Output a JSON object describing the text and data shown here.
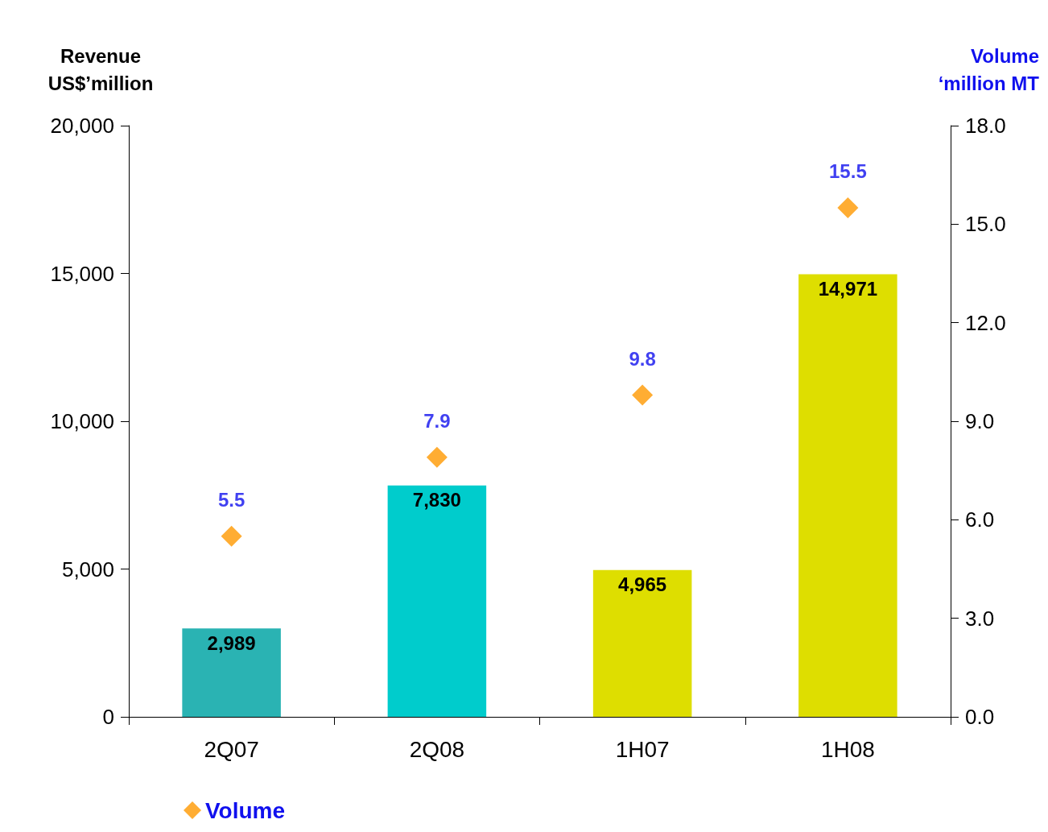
{
  "chart_data": {
    "type": "bar",
    "ylabel": "Revenue\nUS$’million",
    "y2label": "Volume\n‘million MT",
    "categories": [
      "2Q07",
      "2Q08",
      "1H07",
      "1H08"
    ],
    "series": [
      {
        "colors": [
          "#2ab3b3",
          "#00cccc",
          "#dede00",
          "#dede00"
        ],
        "values": [
          2989,
          7830,
          4965,
          14971
        ],
        "value_labels": [
          "2,989",
          "7,830",
          "4,965",
          "14,971"
        ]
      },
      {
        "type": "scatter",
        "name": "Volume",
        "axis": "y2",
        "color": "#ff9900",
        "marker": "diamond",
        "values": [
          5.5,
          7.9,
          9.8,
          15.5
        ],
        "value_labels": [
          "5.5",
          "7.9",
          "9.8",
          "15.5"
        ]
      }
    ],
    "ylim": [
      0,
      20000
    ],
    "yticks": [
      0,
      {
        "value": 5000,
        "label": "5,000"
      },
      {
        "value": 10000,
        "label": "10,000"
      },
      {
        "value": 15000,
        "label": "15,000"
      },
      {
        "value": 20000,
        "label": "20,000"
      }
    ],
    "y2lim": [
      0,
      18
    ],
    "y2ticks": [
      {
        "value": 0,
        "label": "0.0"
      },
      {
        "value": 3,
        "label": "3.0"
      },
      {
        "value": 6,
        "label": "6.0"
      },
      {
        "value": 9,
        "label": "9.0"
      },
      {
        "value": 12,
        "label": "12.0"
      },
      {
        "value": 15,
        "label": "15.0"
      },
      {
        "value": 18,
        "label": "18.0"
      }
    ],
    "grid": false,
    "legend": "bottom left"
  }
}
